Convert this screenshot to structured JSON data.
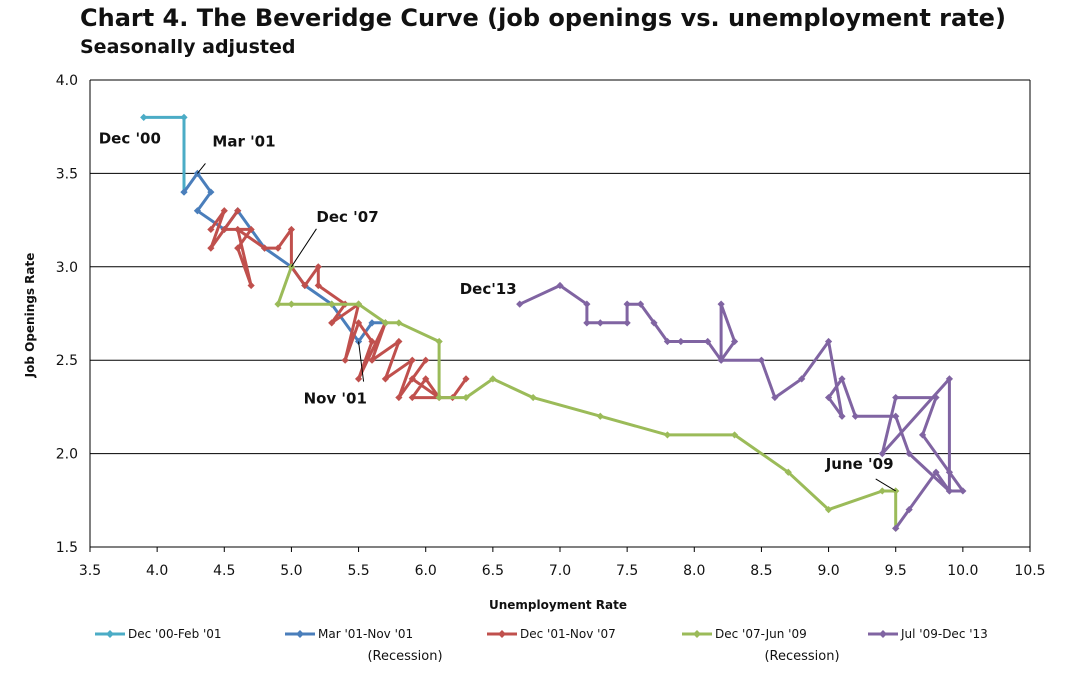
{
  "header": {
    "title": "Chart 4. The Beveridge Curve (job openings vs. unemployment rate)",
    "subtitle": "Seasonally adjusted"
  },
  "chart_data": {
    "type": "line",
    "title": "Chart 4. The Beveridge Curve (job openings vs. unemployment rate)",
    "subtitle": "Seasonally adjusted",
    "xlabel": "Unemployment Rate",
    "ylabel": "Job Openings Rate",
    "xlim": [
      3.5,
      10.5
    ],
    "ylim": [
      1.5,
      4.0
    ],
    "xticks": [
      "3.5",
      "4.0",
      "4.5",
      "5.0",
      "5.5",
      "6.0",
      "6.5",
      "7.0",
      "7.5",
      "8.0",
      "8.5",
      "9.0",
      "9.5",
      "10.0",
      "10.5"
    ],
    "yticks": [
      "1.5",
      "2.0",
      "2.5",
      "3.0",
      "3.5",
      "4.0"
    ],
    "grid": "horizontal",
    "legend_position": "bottom",
    "series": [
      {
        "name": "Dec '00-Feb '01",
        "sub": "",
        "color": "#4bacc6",
        "points": [
          [
            3.9,
            3.8
          ],
          [
            4.2,
            3.8
          ],
          [
            4.2,
            3.4
          ]
        ]
      },
      {
        "name": "Mar '01-Nov '01",
        "sub": "(Recession)",
        "color": "#4a7ebb",
        "points": [
          [
            4.2,
            3.4
          ],
          [
            4.3,
            3.5
          ],
          [
            4.4,
            3.4
          ],
          [
            4.3,
            3.3
          ],
          [
            4.5,
            3.2
          ],
          [
            4.6,
            3.3
          ],
          [
            4.8,
            3.1
          ],
          [
            5.0,
            3.0
          ],
          [
            5.1,
            2.9
          ],
          [
            5.3,
            2.8
          ],
          [
            5.5,
            2.6
          ],
          [
            5.6,
            2.7
          ],
          [
            5.7,
            2.7
          ]
        ]
      },
      {
        "name": "Dec '01-Nov '07",
        "sub": "",
        "color": "#c0504d",
        "points": [
          [
            4.4,
            3.2
          ],
          [
            4.5,
            3.3
          ],
          [
            4.4,
            3.1
          ],
          [
            4.6,
            3.3
          ],
          [
            4.5,
            3.2
          ],
          [
            4.7,
            3.2
          ],
          [
            4.6,
            3.1
          ],
          [
            4.7,
            2.9
          ],
          [
            4.6,
            3.2
          ],
          [
            4.8,
            3.1
          ],
          [
            4.9,
            3.1
          ],
          [
            5.0,
            3.2
          ],
          [
            5.0,
            3.0
          ],
          [
            5.1,
            2.9
          ],
          [
            5.2,
            3.0
          ],
          [
            5.2,
            2.9
          ],
          [
            5.4,
            2.8
          ],
          [
            5.3,
            2.7
          ],
          [
            5.5,
            2.8
          ],
          [
            5.4,
            2.5
          ],
          [
            5.5,
            2.7
          ],
          [
            5.6,
            2.6
          ],
          [
            5.5,
            2.4
          ],
          [
            5.7,
            2.7
          ],
          [
            5.6,
            2.5
          ],
          [
            5.8,
            2.6
          ],
          [
            5.7,
            2.4
          ],
          [
            5.9,
            2.5
          ],
          [
            5.8,
            2.3
          ],
          [
            6.0,
            2.5
          ],
          [
            5.9,
            2.4
          ],
          [
            6.1,
            2.3
          ],
          [
            6.0,
            2.4
          ],
          [
            5.9,
            2.3
          ],
          [
            6.2,
            2.3
          ],
          [
            6.3,
            2.4
          ]
        ]
      },
      {
        "name": "Dec '07-Jun '09",
        "sub": "(Recession)",
        "color": "#9bbb59",
        "points": [
          [
            5.0,
            3.0
          ],
          [
            4.9,
            2.8
          ],
          [
            5.0,
            2.8
          ],
          [
            5.3,
            2.8
          ],
          [
            5.5,
            2.8
          ],
          [
            5.7,
            2.7
          ],
          [
            5.8,
            2.7
          ],
          [
            6.1,
            2.6
          ],
          [
            6.1,
            2.3
          ],
          [
            6.3,
            2.3
          ],
          [
            6.5,
            2.4
          ],
          [
            6.8,
            2.3
          ],
          [
            7.3,
            2.2
          ],
          [
            7.8,
            2.1
          ],
          [
            8.3,
            2.1
          ],
          [
            8.7,
            1.9
          ],
          [
            9.0,
            1.7
          ],
          [
            9.4,
            1.8
          ],
          [
            9.5,
            1.8
          ],
          [
            9.5,
            1.6
          ]
        ]
      },
      {
        "name": "Jul '09-Dec '13",
        "sub": "",
        "color": "#8064a2",
        "points": [
          [
            9.5,
            1.6
          ],
          [
            9.6,
            1.7
          ],
          [
            9.8,
            1.9
          ],
          [
            9.9,
            1.8
          ],
          [
            10.0,
            1.8
          ],
          [
            9.9,
            1.9
          ],
          [
            9.7,
            2.1
          ],
          [
            9.8,
            2.3
          ],
          [
            9.5,
            2.3
          ],
          [
            9.4,
            2.0
          ],
          [
            9.9,
            2.4
          ],
          [
            9.9,
            1.8
          ],
          [
            9.6,
            2.0
          ],
          [
            9.5,
            2.2
          ],
          [
            9.2,
            2.2
          ],
          [
            9.1,
            2.4
          ],
          [
            9.0,
            2.3
          ],
          [
            9.1,
            2.2
          ],
          [
            9.0,
            2.6
          ],
          [
            8.8,
            2.4
          ],
          [
            8.6,
            2.3
          ],
          [
            8.5,
            2.5
          ],
          [
            8.2,
            2.5
          ],
          [
            8.3,
            2.6
          ],
          [
            8.2,
            2.8
          ],
          [
            8.2,
            2.5
          ],
          [
            8.1,
            2.6
          ],
          [
            7.9,
            2.6
          ],
          [
            7.8,
            2.6
          ],
          [
            7.7,
            2.7
          ],
          [
            7.6,
            2.8
          ],
          [
            7.5,
            2.8
          ],
          [
            7.5,
            2.7
          ],
          [
            7.3,
            2.7
          ],
          [
            7.2,
            2.7
          ],
          [
            7.2,
            2.8
          ],
          [
            7.0,
            2.9
          ],
          [
            6.7,
            2.8
          ]
        ]
      }
    ],
    "annotations": [
      {
        "text": "Dec '00",
        "x": 3.9,
        "y": 3.8
      },
      {
        "text": "Mar '01",
        "x": 4.3,
        "y": 3.5
      },
      {
        "text": "Dec '07",
        "x": 5.0,
        "y": 3.0
      },
      {
        "text": "Nov '01",
        "x": 5.5,
        "y": 2.6
      },
      {
        "text": "Dec'13",
        "x": 6.7,
        "y": 2.8
      },
      {
        "text": "June '09",
        "x": 9.5,
        "y": 1.8
      }
    ]
  }
}
